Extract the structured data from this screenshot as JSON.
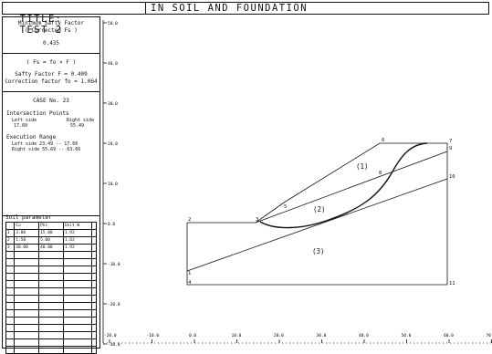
{
  "title": {
    "label": "TITLE:",
    "test": "TEST 2",
    "subject": "IN SOIL AND FOUNDATION"
  },
  "panel": {
    "min_fs_label_1": "Minimum Safty Factor",
    "min_fs_label_2": "( Corrected Fs )",
    "min_fs_value": "0.435",
    "formula": "( Fs = fo × F )",
    "safety_factor": "Safty Factor  F = 0.409",
    "correction_factor": "Correction factor fo = 1.064",
    "case": "CASE No.  23",
    "intersection_title": "Intersection Points",
    "left_side_label": "Left side",
    "right_side_label": "Right side",
    "left_side_value": "17.60",
    "right_side_value": "55.49",
    "execution_title": "Execution Range",
    "exec_left": "Left side  23.49 -- 17.60",
    "exec_right": "Right side 55.69 -- 63.66",
    "soil_title": "Soil parameter",
    "soil_headers": [
      "",
      "Cu",
      "Phi",
      "Unit W"
    ],
    "soil_rows": [
      [
        "1",
        "3.00",
        "15.00",
        "1.92"
      ],
      [
        "2",
        "1.50",
        "5.00",
        "1.82"
      ],
      [
        "3",
        "30.00",
        "40.00",
        "1.92"
      ]
    ]
  },
  "axes": {
    "y_ticks": [
      "50.0",
      "40.0",
      "30.0",
      "20.0",
      "10.0",
      "0.0",
      "-10.0",
      "-20.0",
      "-30.0"
    ],
    "x_ticks": [
      "-20.0",
      "-10.0",
      "0.0",
      "10.0",
      "20.0",
      "30.0",
      "40.0",
      "50.0",
      "60.0",
      "70.0"
    ]
  },
  "plot": {
    "points": [
      "2",
      "3",
      "4",
      "5",
      "6",
      "7",
      "8",
      "9",
      "10",
      "11"
    ],
    "points_left_bottom": "1",
    "layers": [
      "(1)",
      "(2)",
      "(3)"
    ]
  }
}
